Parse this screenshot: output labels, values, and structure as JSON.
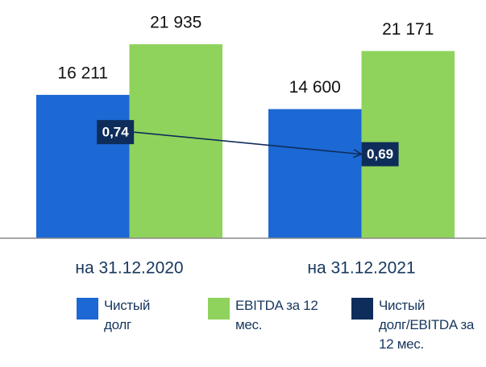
{
  "chart_data": {
    "type": "bar",
    "categories": [
      "на 31.12.2020",
      "на 31.12.2021"
    ],
    "series": [
      {
        "name": "Чистый долг",
        "color": "#1c68d4",
        "values": [
          16211,
          14600
        ],
        "value_labels": [
          "16 211",
          "14 600"
        ]
      },
      {
        "name": "EBITDA за 12 мес.",
        "color": "#8fd35c",
        "values": [
          21935,
          21171
        ],
        "value_labels": [
          "21 935",
          "21 171"
        ]
      },
      {
        "name": "Чистый долг/EBITDA за 12 мес.",
        "color": "#0f2d5a",
        "values": [
          0.74,
          0.69
        ],
        "value_labels": [
          "0,74",
          "0,69"
        ],
        "axis": "y2"
      }
    ],
    "ylim": [
      0,
      25000
    ],
    "y2lim": [
      0.5,
      1.0
    ]
  }
}
